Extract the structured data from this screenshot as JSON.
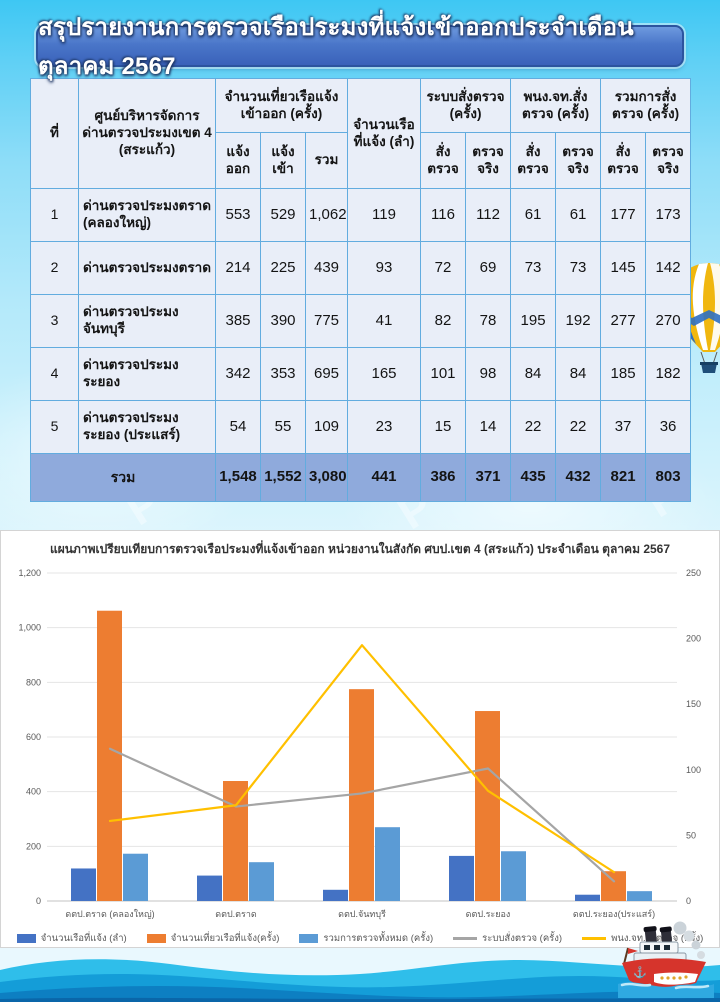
{
  "title": "สรุปรายงานการตรวจเรือประมงที่แจ้งเข้าออกประจำเดือน ตุลาคม 2567",
  "watermark_glyph": "P",
  "table": {
    "headers": {
      "no": "ที่",
      "unit": "ศูนย์บริหารจัดการด่าน​ตรวจประมงเขต 4 (สระแก้ว)",
      "trips_group": "จำนวนเที่ยวเรือแจ้ง​เข้าออก (ครั้ง)",
      "trips_out": "แจ้ง​ออก",
      "trips_in": "แจ้ง​เข้า",
      "trips_total": "รวม",
      "vessels": "จำนวนเรือที่​แจ้ง (ลำ)",
      "system_group": "ระบบสั่งตรวจ (ครั้ง)",
      "officer_group": "พนง.จท.สั่ง​ตรวจ (ครั้ง)",
      "total_group": "รวมการสั่ง​ตรวจ (ครั้ง)",
      "ordered": "สั่ง​ตรวจ",
      "actual": "ตรวจ​จริง"
    },
    "rows": [
      {
        "no": "1",
        "name": "ด่านตรวจประมงตราด (คลองใหญ่)",
        "values": [
          "553",
          "529",
          "1,062",
          "119",
          "116",
          "112",
          "61",
          "61",
          "177",
          "173"
        ]
      },
      {
        "no": "2",
        "name": "ด่านตรวจประมงตราด",
        "values": [
          "214",
          "225",
          "439",
          "93",
          "72",
          "69",
          "73",
          "73",
          "145",
          "142"
        ]
      },
      {
        "no": "3",
        "name": "ด่านตรวจประมง​จันทบุรี",
        "values": [
          "385",
          "390",
          "775",
          "41",
          "82",
          "78",
          "195",
          "192",
          "277",
          "270"
        ]
      },
      {
        "no": "4",
        "name": "ด่านตรวจประมงระยอง",
        "values": [
          "342",
          "353",
          "695",
          "165",
          "101",
          "98",
          "84",
          "84",
          "185",
          "182"
        ]
      },
      {
        "no": "5",
        "name": "ด่านตรวจประมงระยอง (ประแสร์)",
        "values": [
          "54",
          "55",
          "109",
          "23",
          "15",
          "14",
          "22",
          "22",
          "37",
          "36"
        ]
      }
    ],
    "total": {
      "label": "รวม",
      "values": [
        "1,548",
        "1,552",
        "3,080",
        "441",
        "386",
        "371",
        "435",
        "432",
        "821",
        "803"
      ]
    }
  },
  "chart_data": {
    "type": "bar",
    "title": "แผนภาพเปรียบเทียบการตรวจเรือประมงที่แจ้งเข้าออก หน่วยงานในสังกัด ศบป.เขต 4 (สระแก้ว) ประจำเดือน ตุลาคม 2567",
    "categories": [
      "ดตป.ตราด (คลองใหญ่)",
      "ดตป.ตราด",
      "ดตป.จันทบุรี",
      "ดตป.ระยอง",
      "ดตป.ระยอง(ประแสร์)"
    ],
    "bar_series": [
      {
        "name": "จำนวนเรือที่แจ้ง (ลำ)",
        "color": "#4472C4",
        "axis": "left",
        "values": [
          119,
          93,
          41,
          165,
          23
        ]
      },
      {
        "name": "จำนวนเที่ยวเรือที่แจ้ง(ครั้ง)",
        "color": "#ED7D31",
        "axis": "left",
        "values": [
          1062,
          439,
          775,
          695,
          109
        ]
      },
      {
        "name": "รวมการตรวจทั้งหมด (ครั้ง)",
        "color": "#5B9BD5",
        "axis": "left",
        "values": [
          173,
          142,
          270,
          182,
          36
        ]
      }
    ],
    "line_series": [
      {
        "name": "ระบบสั่งตรวจ (ครั้ง)",
        "color": "#A5A5A5",
        "axis": "right",
        "values": [
          116,
          72,
          82,
          101,
          15
        ]
      },
      {
        "name": "พนง.จท.สั่งตรวจ (ครั้ง)",
        "color": "#FFC000",
        "axis": "right",
        "values": [
          61,
          73,
          195,
          84,
          22
        ]
      }
    ],
    "left_axis": {
      "min": 0,
      "max": 1200,
      "step": 200,
      "ticks": [
        "0",
        "200",
        "400",
        "600",
        "800",
        "1,000",
        "1,200"
      ]
    },
    "right_axis": {
      "min": 0,
      "max": 250,
      "step": 50,
      "ticks": [
        "0",
        "50",
        "100",
        "150",
        "200",
        "250"
      ]
    },
    "grid": true,
    "legend_position": "bottom"
  },
  "colors": {
    "banner_border": "#2C549F",
    "table_border": "#62ACDF",
    "table_cell_bg": "#E9EEF8",
    "total_row_bg": "#8FAADC",
    "bar_dark_blue": "#4472C4",
    "bar_orange": "#ED7D31",
    "bar_light_blue": "#5B9BD5",
    "line_gray": "#A5A5A5",
    "line_yellow": "#FFC000"
  }
}
